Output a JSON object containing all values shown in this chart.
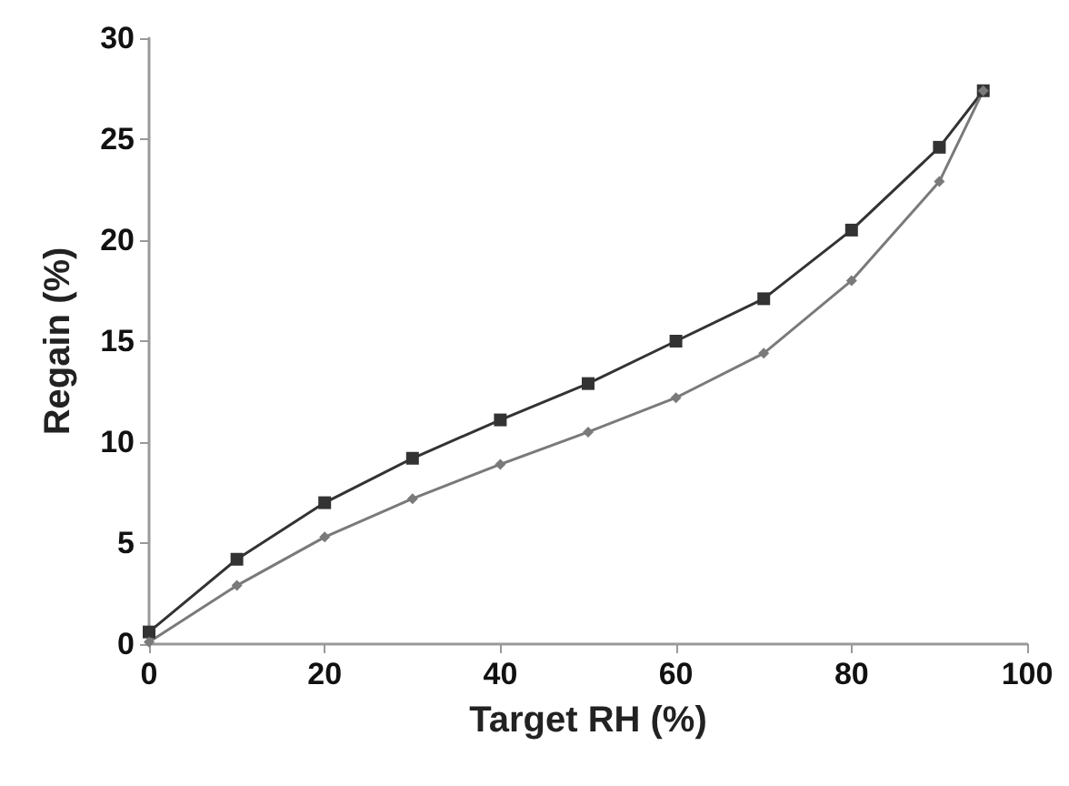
{
  "chart_data": {
    "type": "line",
    "xlabel": "Target RH (%)",
    "ylabel": "Regain (%)",
    "xlim": [
      0,
      100
    ],
    "xticks": [
      0,
      20,
      40,
      60,
      80,
      100
    ],
    "ylim": [
      0,
      30
    ],
    "yticks": [
      0,
      5,
      10,
      15,
      20,
      25,
      30
    ],
    "grid": false,
    "line_style": "solid",
    "series": [
      {
        "color": "#333333",
        "marker": "square",
        "x": [
          0,
          10,
          20,
          30,
          40,
          50,
          60,
          70,
          80,
          90,
          95
        ],
        "values": [
          0.6,
          4.2,
          7.0,
          9.2,
          11.1,
          12.9,
          15.0,
          17.1,
          20.5,
          24.6,
          27.4
        ]
      },
      {
        "color": "#7a7a7a",
        "marker": "diamond",
        "x": [
          0,
          10,
          20,
          30,
          40,
          50,
          60,
          70,
          80,
          90,
          95
        ],
        "values": [
          0.1,
          2.9,
          5.3,
          7.2,
          8.9,
          10.5,
          12.2,
          14.4,
          18.0,
          22.9,
          27.4
        ]
      }
    ]
  }
}
